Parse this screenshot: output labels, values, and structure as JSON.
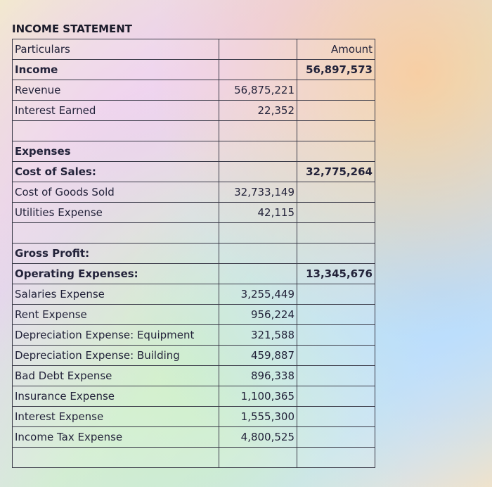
{
  "title": "INCOME STATEMENT",
  "table": {
    "rows": [
      [
        "Particulars",
        null,
        "Amount"
      ],
      [
        "Income",
        null,
        "56,897,573"
      ],
      [
        "Revenue",
        "56,875,221",
        null
      ],
      [
        "Interest Earned",
        "22,352",
        null
      ],
      [
        null,
        null,
        null
      ],
      [
        "Expenses",
        null,
        null
      ],
      [
        "Cost of Sales:",
        null,
        "32,775,264"
      ],
      [
        "Cost of Goods Sold",
        "32,733,149",
        null
      ],
      [
        "Utilities Expense",
        "42,115",
        null
      ],
      [
        null,
        null,
        null
      ],
      [
        "Gross Profit:",
        null,
        null
      ],
      [
        "Operating Expenses:",
        null,
        "13,345,676"
      ],
      [
        "Salaries Expense",
        "3,255,449",
        null
      ],
      [
        "Rent Expense",
        "956,224",
        null
      ],
      [
        "Depreciation Expense: Equipment",
        "321,588",
        null
      ],
      [
        "Depreciation Expense: Building",
        "459,887",
        null
      ],
      [
        "Bad Debt Expense",
        "896,338",
        null
      ],
      [
        "Insurance Expense",
        "1,100,365",
        null
      ],
      [
        "Interest Expense",
        "1,555,300",
        null
      ],
      [
        "Income Tax Expense",
        "4,800,525",
        null
      ],
      [
        null,
        null,
        null
      ]
    ]
  }
}
